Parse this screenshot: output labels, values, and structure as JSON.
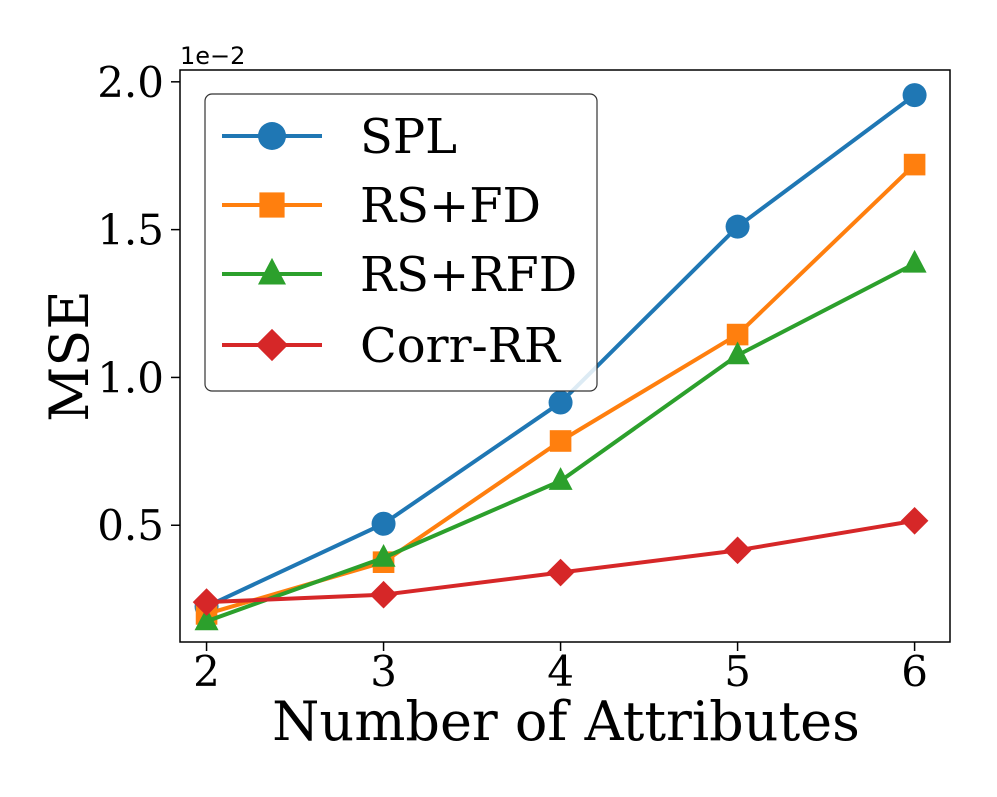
{
  "chart_data": {
    "type": "line",
    "title": "",
    "xlabel": "Number of Attributes",
    "ylabel": "MSE",
    "scale_label": "1e−2",
    "x": [
      2,
      3,
      4,
      5,
      6
    ],
    "x_ticks": [
      "2",
      "3",
      "4",
      "5",
      "6"
    ],
    "y_ticks": [
      "0.5",
      "1.0",
      "1.5",
      "2.0"
    ],
    "y_tick_values": [
      0.5,
      1.0,
      1.5,
      2.0
    ],
    "xlim": [
      1.85,
      6.2
    ],
    "ylim": [
      0.105,
      2.04
    ],
    "grid": false,
    "legend_position": "upper-left",
    "series": [
      {
        "name": "SPL",
        "color": "#1f77b4",
        "marker": "circle",
        "values": [
          0.225,
          0.505,
          0.915,
          1.51,
          1.955
        ]
      },
      {
        "name": "RS+FD",
        "color": "#ff7f0e",
        "marker": "square",
        "values": [
          0.2,
          0.375,
          0.785,
          1.145,
          1.72
        ]
      },
      {
        "name": "RS+RFD",
        "color": "#2ca02c",
        "marker": "triangle",
        "values": [
          0.175,
          0.39,
          0.65,
          1.075,
          1.385
        ]
      },
      {
        "name": "Corr-RR",
        "color": "#d62728",
        "marker": "diamond",
        "values": [
          0.24,
          0.265,
          0.34,
          0.415,
          0.515
        ]
      }
    ]
  }
}
